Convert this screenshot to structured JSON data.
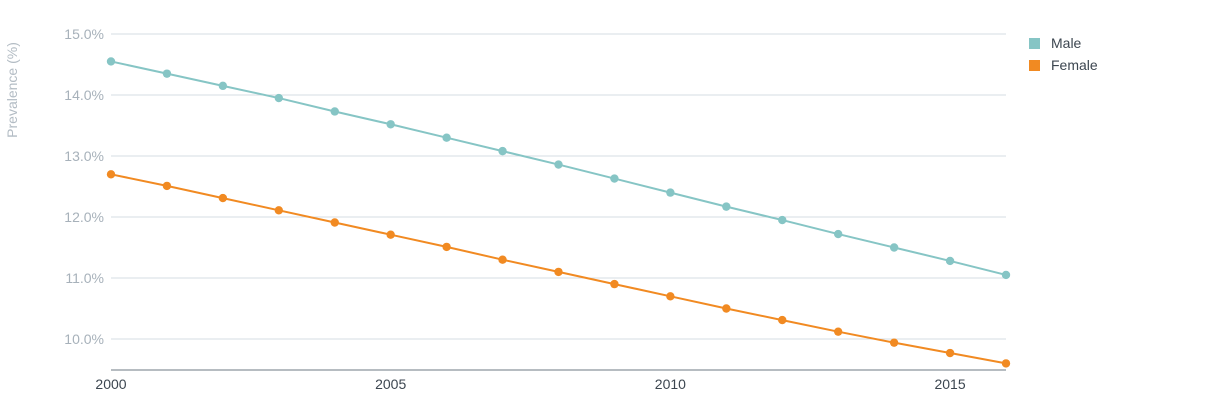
{
  "chart_data": {
    "type": "line",
    "title": "",
    "xlabel": "",
    "ylabel": "Prevalence (%)",
    "x": [
      2000,
      2001,
      2002,
      2003,
      2004,
      2005,
      2006,
      2007,
      2008,
      2009,
      2010,
      2011,
      2012,
      2013,
      2014,
      2015,
      2016
    ],
    "xlim": [
      2000,
      2016
    ],
    "ylim": [
      9.5,
      15.0
    ],
    "x_ticks": [
      2000,
      2005,
      2010,
      2015
    ],
    "x_tick_labels": [
      "2000",
      "2005",
      "2010",
      "2015"
    ],
    "y_ticks": [
      10,
      11,
      12,
      13,
      14,
      15
    ],
    "y_tick_labels": [
      "10.0%",
      "11.0%",
      "12.0%",
      "13.0%",
      "14.0%",
      "15.0%"
    ],
    "grid": true,
    "legend_position": "top-right",
    "series": [
      {
        "name": "Male",
        "color": "#86c5c5",
        "values": [
          14.55,
          14.35,
          14.15,
          13.95,
          13.73,
          13.52,
          13.3,
          13.08,
          12.86,
          12.63,
          12.4,
          12.17,
          11.95,
          11.72,
          11.5,
          11.28,
          11.05
        ]
      },
      {
        "name": "Female",
        "color": "#f18a22",
        "values": [
          12.7,
          12.51,
          12.31,
          12.11,
          11.91,
          11.71,
          11.51,
          11.3,
          11.1,
          10.9,
          10.7,
          10.5,
          10.31,
          10.12,
          9.94,
          9.77,
          9.6
        ]
      }
    ]
  }
}
